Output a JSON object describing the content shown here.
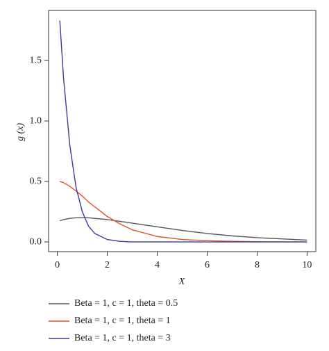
{
  "chart_data": {
    "type": "line",
    "x_label": "X",
    "y_label": "g (x)",
    "x": [
      0.1,
      0.25,
      0.5,
      0.75,
      1,
      1.25,
      1.5,
      2,
      2.5,
      3,
      4,
      5,
      6,
      7,
      8,
      9,
      10
    ],
    "series": [
      {
        "name": "Beta = 1, c = 1, theta = 0.5",
        "color": "#555555",
        "values": [
          0.175,
          0.185,
          0.195,
          0.2,
          0.2,
          0.2,
          0.195,
          0.185,
          0.17,
          0.155,
          0.125,
          0.095,
          0.07,
          0.05,
          0.035,
          0.025,
          0.015
        ]
      },
      {
        "name": "Beta = 1, c = 1, theta = 1",
        "color": "#e0502a",
        "values": [
          0.5,
          0.49,
          0.46,
          0.42,
          0.38,
          0.33,
          0.29,
          0.21,
          0.15,
          0.1,
          0.045,
          0.02,
          0.01,
          0.005,
          0.002,
          0.001,
          0
        ]
      },
      {
        "name": "Beta = 1, c = 1, theta = 3",
        "color": "#3a3a9a",
        "values": [
          1.83,
          1.35,
          0.8,
          0.45,
          0.25,
          0.13,
          0.07,
          0.02,
          0.005,
          0,
          0,
          0,
          0,
          0,
          0,
          0,
          0
        ]
      }
    ],
    "xlim": [
      -0.35,
      10.35
    ],
    "ylim": [
      -0.08,
      1.914
    ],
    "xticks": [
      0,
      2,
      4,
      6,
      8,
      10
    ],
    "yticks": [
      {
        "value": 0,
        "label": "0.0"
      },
      {
        "value": 0.5,
        "label": "0.5"
      },
      {
        "value": 1,
        "label": "1.0"
      },
      {
        "value": 1.5,
        "label": "1.5"
      }
    ],
    "legend": "bottom"
  }
}
